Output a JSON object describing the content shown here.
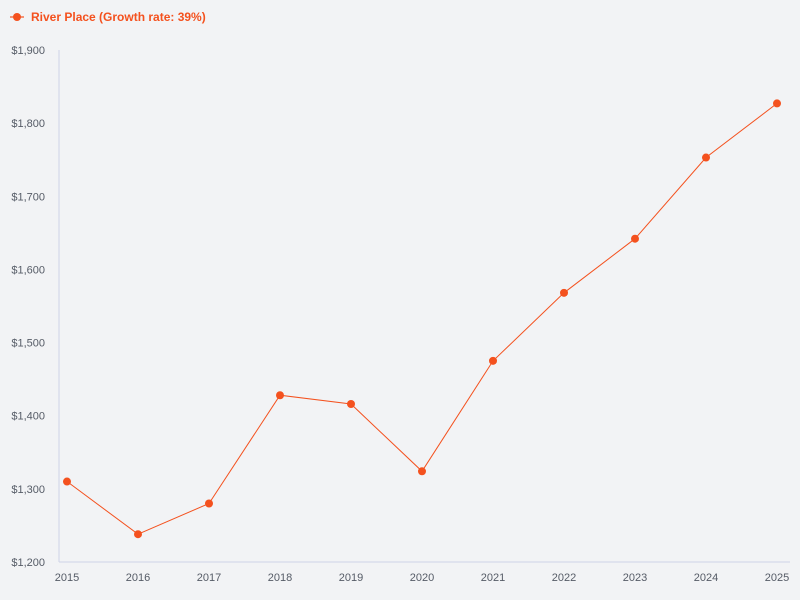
{
  "chart_data": {
    "type": "line",
    "title": "",
    "xlabel": "",
    "ylabel": "",
    "categories": [
      "2015",
      "2016",
      "2017",
      "2018",
      "2019",
      "2020",
      "2021",
      "2022",
      "2023",
      "2024",
      "2025"
    ],
    "series": [
      {
        "name": "River Place",
        "legend_label": "River Place (Growth rate: 39%)",
        "values": [
          1310,
          1238,
          1280,
          1428,
          1416,
          1324,
          1475,
          1568,
          1642,
          1753,
          1827
        ]
      }
    ],
    "ylim": [
      1200,
      1900
    ],
    "y_ticks": [
      1200,
      1300,
      1400,
      1500,
      1600,
      1700,
      1800,
      1900
    ],
    "y_tick_labels": [
      "$1,200",
      "$1,300",
      "$1,400",
      "$1,500",
      "$1,600",
      "$1,700",
      "$1,800",
      "$1,900"
    ],
    "grid": false,
    "legend_position": "top-left",
    "colors": {
      "series": "#f4511e",
      "axis": "#cfd3e6",
      "background": "#f2f3f5",
      "tick_text": "#555b66"
    }
  }
}
